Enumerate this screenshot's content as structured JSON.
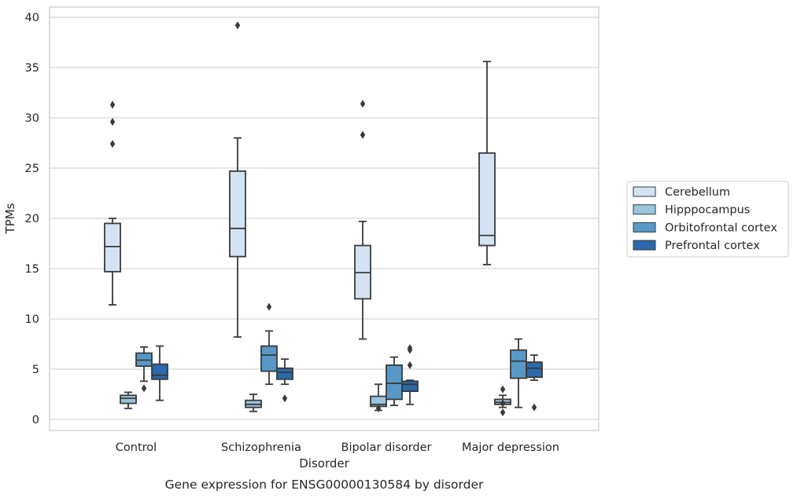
{
  "chart_data": {
    "type": "box",
    "caption": "Gene expression for ENSG00000130584 by disorder",
    "xlabel": "Disorder",
    "ylabel": "TPMs",
    "ylim": [
      -1,
      41
    ],
    "yticks": [
      0,
      5,
      10,
      15,
      20,
      25,
      30,
      35,
      40
    ],
    "grid": "horizontal",
    "legend_position": "right",
    "categories": [
      "Control",
      "Schizophrenia",
      "Bipolar disorder",
      "Major depression"
    ],
    "series": [
      {
        "name": "Cerebellum",
        "color": "#d3e3f2",
        "boxes": [
          {
            "whislo": 11.4,
            "q1": 14.7,
            "med": 17.2,
            "q3": 19.5,
            "whishi": 20.0,
            "fliers": [
              27.4,
              29.6,
              31.3
            ]
          },
          {
            "whislo": 8.2,
            "q1": 16.2,
            "med": 19.0,
            "q3": 24.7,
            "whishi": 28.0,
            "fliers": [
              39.2
            ]
          },
          {
            "whislo": 8.0,
            "q1": 12.0,
            "med": 14.6,
            "q3": 17.3,
            "whishi": 19.7,
            "fliers": [
              28.3,
              31.4
            ]
          },
          {
            "whislo": 15.4,
            "q1": 17.3,
            "med": 18.3,
            "q3": 26.5,
            "whishi": 35.6,
            "fliers": []
          }
        ]
      },
      {
        "name": "Hipppocampus",
        "color": "#9ac5df",
        "boxes": [
          {
            "whislo": 1.1,
            "q1": 1.6,
            "med": 2.1,
            "q3": 2.4,
            "whishi": 2.7,
            "fliers": []
          },
          {
            "whislo": 0.8,
            "q1": 1.2,
            "med": 1.5,
            "q3": 1.9,
            "whishi": 2.5,
            "fliers": []
          },
          {
            "whislo": 0.9,
            "q1": 1.3,
            "med": 1.5,
            "q3": 2.3,
            "whishi": 3.5,
            "fliers": [
              1.1
            ]
          },
          {
            "whislo": 1.2,
            "q1": 1.5,
            "med": 1.7,
            "q3": 2.0,
            "whishi": 2.4,
            "fliers": [
              0.7,
              1.6,
              3.0
            ]
          }
        ]
      },
      {
        "name": "Orbitofrontal cortex",
        "color": "#5799c6",
        "boxes": [
          {
            "whislo": 3.8,
            "q1": 5.3,
            "med": 5.9,
            "q3": 6.6,
            "whishi": 7.2,
            "fliers": [
              3.1
            ]
          },
          {
            "whislo": 3.5,
            "q1": 4.8,
            "med": 6.4,
            "q3": 7.3,
            "whishi": 8.8,
            "fliers": [
              11.2
            ]
          },
          {
            "whislo": 1.4,
            "q1": 2.0,
            "med": 3.6,
            "q3": 5.4,
            "whishi": 6.2,
            "fliers": []
          },
          {
            "whislo": 1.2,
            "q1": 4.1,
            "med": 5.8,
            "q3": 6.9,
            "whishi": 8.0,
            "fliers": []
          }
        ]
      },
      {
        "name": "Prefrontal cortex",
        "color": "#2a69ab",
        "boxes": [
          {
            "whislo": 1.9,
            "q1": 4.0,
            "med": 4.4,
            "q3": 5.5,
            "whishi": 7.3,
            "fliers": []
          },
          {
            "whislo": 3.5,
            "q1": 4.0,
            "med": 4.7,
            "q3": 5.1,
            "whishi": 6.0,
            "fliers": [
              2.1
            ]
          },
          {
            "whislo": 1.5,
            "q1": 2.8,
            "med": 3.5,
            "q3": 3.8,
            "whishi": 3.9,
            "fliers": [
              5.4,
              6.9,
              7.1
            ]
          },
          {
            "whislo": 3.9,
            "q1": 4.2,
            "med": 5.1,
            "q3": 5.7,
            "whishi": 6.4,
            "fliers": [
              1.2
            ]
          }
        ]
      }
    ]
  }
}
